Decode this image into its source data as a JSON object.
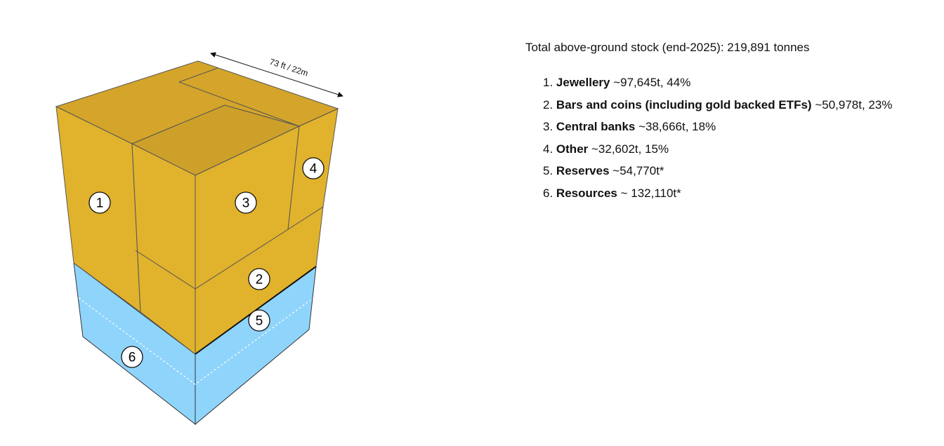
{
  "diagram": {
    "dimension_label": "73 ft / 22m",
    "block_labels": [
      "1",
      "2",
      "3",
      "4",
      "5",
      "6"
    ]
  },
  "summary": "Total above-ground stock (end-2025): 219,891 tonnes",
  "list": [
    {
      "number": "1.",
      "name": "Jewellery",
      "detail": "~97,645t, 44%"
    },
    {
      "number": "2.",
      "name": "Bars and coins (including gold backed ETFs)",
      "detail": "~50,978t, 23%"
    },
    {
      "number": "3.",
      "name": "Central banks",
      "detail": "~38,666t, 18%"
    },
    {
      "number": "4.",
      "name": "Other",
      "detail": "~32,602t, 15%"
    },
    {
      "number": "5.",
      "name": "Reserves",
      "detail": "~54,770t*"
    },
    {
      "number": "6.",
      "name": "Resources",
      "detail": "~ 132,110t*"
    }
  ]
}
